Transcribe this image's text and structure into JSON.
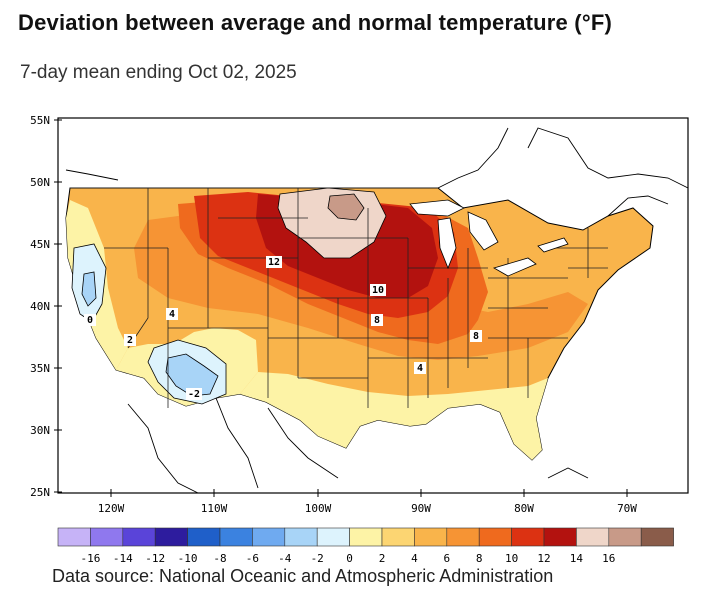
{
  "header": {
    "title": "Deviation between average and normal temperature (°F)",
    "subtitle": "7-day mean ending Oct 02, 2025"
  },
  "map": {
    "lat_labels": [
      "55N",
      "50N",
      "45N",
      "40N",
      "35N",
      "30N",
      "25N"
    ],
    "lon_labels": [
      "120W",
      "110W",
      "100W",
      "90W",
      "80W",
      "70W"
    ],
    "contour_labels": [
      "12",
      "10",
      "8",
      "8",
      "4",
      "4",
      "2",
      "0",
      "-2"
    ]
  },
  "legend": {
    "colors": [
      "#c6b3f7",
      "#8f78ee",
      "#5a44d9",
      "#2d1c9e",
      "#1f5fc9",
      "#3b82e0",
      "#6faaf0",
      "#a8d4f7",
      "#ddf3fd",
      "#fdf3a6",
      "#fcd572",
      "#f9b44b",
      "#f69434",
      "#ef6a1e",
      "#dc3212",
      "#b3120f",
      "#efd6c9",
      "#c89a88",
      "#8a5c4a"
    ],
    "labels": [
      "-16",
      "-14",
      "-12",
      "-10",
      "-8",
      "-6",
      "-4",
      "-2",
      "0",
      "2",
      "4",
      "6",
      "8",
      "10",
      "12",
      "14",
      "16"
    ]
  },
  "footer": {
    "source": "Data source: National Oceanic and Atmospheric Administration"
  }
}
